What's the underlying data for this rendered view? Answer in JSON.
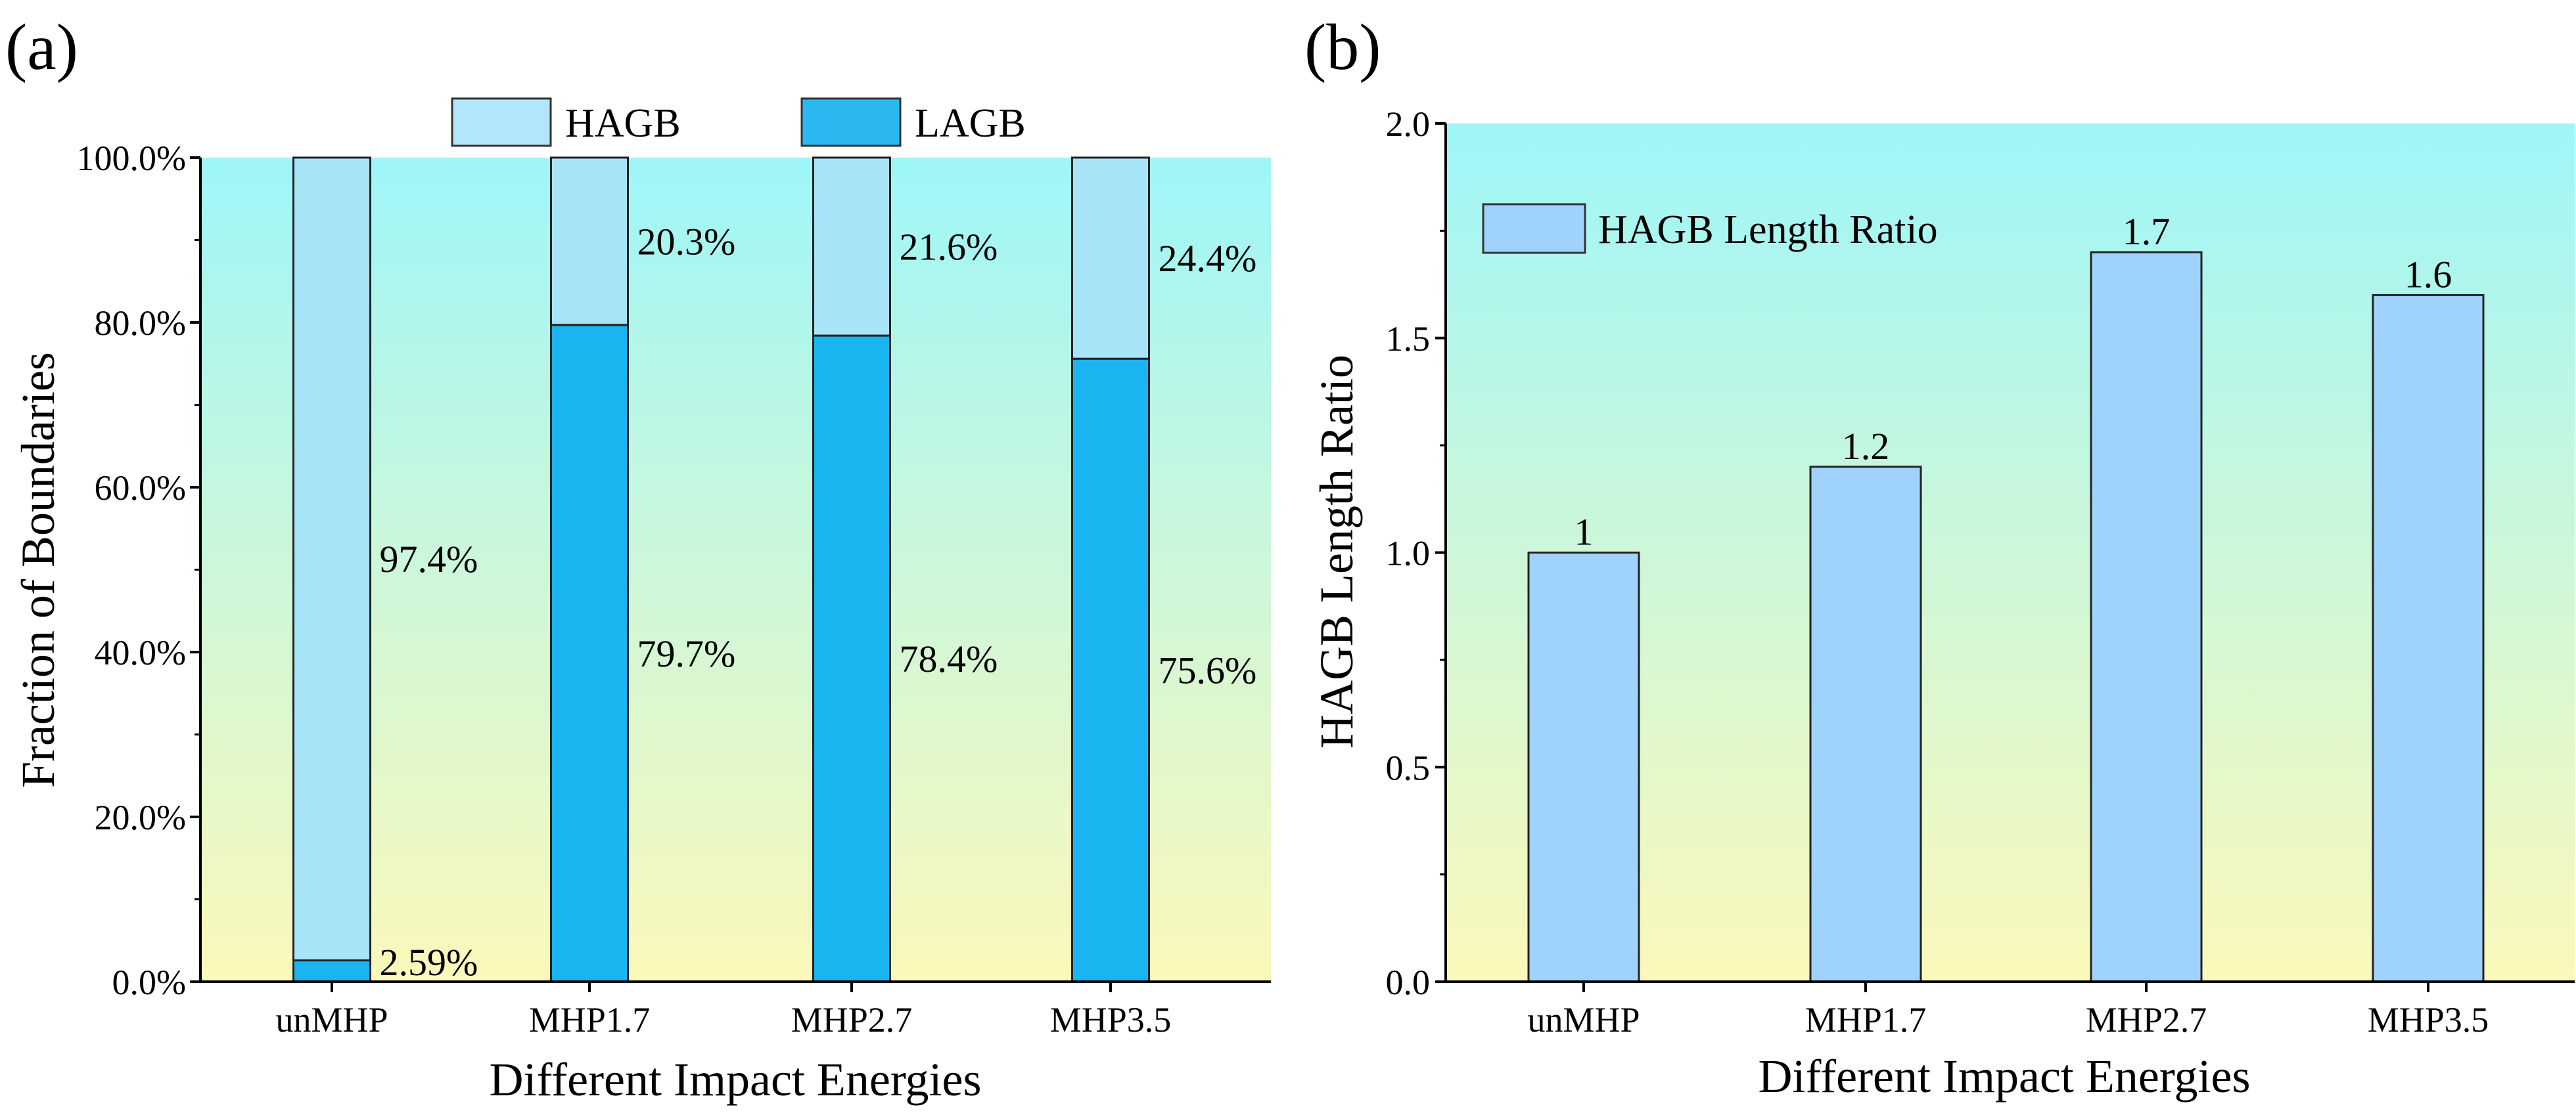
{
  "chart_data": [
    {
      "panel_label": "(a)",
      "type": "bar",
      "stacked": true,
      "categories": [
        "unMHP",
        "MHP1.7",
        "MHP2.7",
        "MHP3.5"
      ],
      "series": [
        {
          "name": "LAGB",
          "values": [
            2.59,
            79.7,
            78.4,
            75.6
          ],
          "labels": [
            "2.59%",
            "79.7%",
            "78.4%",
            "75.6%"
          ],
          "color": "#1ab4f0"
        },
        {
          "name": "HAGB",
          "values": [
            97.41,
            20.3,
            21.6,
            24.4
          ],
          "labels": [
            "97.4%",
            "20.3%",
            "21.6%",
            "24.4%"
          ],
          "color": "#a8e4f8"
        }
      ],
      "xlabel": "Different Impact Energies",
      "ylabel": "Fraction of Boundaries",
      "ylim": [
        0,
        100
      ],
      "yticks": [
        0,
        20,
        40,
        60,
        80,
        100
      ],
      "ytick_labels": [
        "0.0%",
        "20.0%",
        "40.0%",
        "60.0%",
        "80.0%",
        "100.0%"
      ],
      "legend": {
        "placement": "top-outside",
        "entries": [
          "HAGB",
          "LAGB"
        ]
      },
      "background": {
        "top": "#9ef6f8",
        "bottom": "#fbf8ba"
      }
    },
    {
      "panel_label": "(b)",
      "type": "bar",
      "categories": [
        "unMHP",
        "MHP1.7",
        "MHP2.7",
        "MHP3.5"
      ],
      "series": [
        {
          "name": "HAGB Length Ratio",
          "values": [
            1.0,
            1.2,
            1.7,
            1.6
          ],
          "labels": [
            "1",
            "1.2",
            "1.7",
            "1.6"
          ],
          "color": "#9fd3fb"
        }
      ],
      "xlabel": "Different Impact Energies",
      "ylabel": "HAGB Length Ratio",
      "ylim": [
        0,
        2
      ],
      "yticks": [
        0,
        0.5,
        1,
        1.5,
        2
      ],
      "ytick_labels": [
        "0.0",
        "0.5",
        "1.0",
        "1.5",
        "2.0"
      ],
      "legend": {
        "placement": "top-left",
        "entries": [
          "HAGB Length Ratio"
        ]
      },
      "background": {
        "top": "#9ef6f8",
        "bottom": "#fbf8ba"
      }
    }
  ]
}
